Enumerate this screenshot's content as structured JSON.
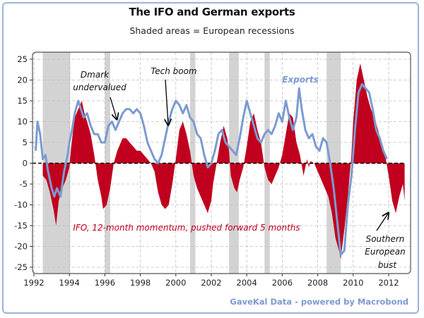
{
  "chart_data": {
    "type": "area",
    "title": "The IFO and German exports",
    "subtitle": "Shaded areas = European recessions",
    "source": "GaveKal Data - powered by Macrobond",
    "xlabel": "",
    "ylabel": "",
    "xlim": [
      1991.9,
      2013.2
    ],
    "ylim": [
      -27,
      27
    ],
    "grid": true,
    "x_ticks": [
      1992,
      1994,
      1996,
      1998,
      2000,
      2002,
      2004,
      2006,
      2008,
      2010,
      2012
    ],
    "x_tick_labels": [
      "1992",
      "1994",
      "1996",
      "1998",
      "2000",
      "2002",
      "2004",
      "2006",
      "2008",
      "2010",
      "2012"
    ],
    "y_ticks": [
      25,
      20,
      15,
      10,
      5,
      0,
      -5,
      -10,
      -15,
      -20,
      -25
    ],
    "y_tick_labels": [
      "25",
      "20",
      "15",
      "10",
      "5",
      "0",
      "-5",
      "-10",
      "-15",
      "-20",
      "-25"
    ],
    "recessions": [
      [
        1992.5,
        1994.05
      ],
      [
        1996.0,
        1996.3
      ],
      [
        2000.8,
        2001.1
      ],
      [
        2003.0,
        2003.55
      ],
      [
        2005.0,
        2005.3
      ],
      [
        2008.5,
        2009.3
      ]
    ],
    "series": [
      {
        "name": "IFO, 12-month momentum, pushed forward 5 months",
        "kind": "area",
        "color": "#c0001e",
        "x": [
          1992.5,
          1992.7,
          1992.9,
          1993.1,
          1993.25,
          1993.4,
          1993.6,
          1993.8,
          1994.0,
          1994.1,
          1994.3,
          1994.5,
          1994.7,
          1994.85,
          1995.0,
          1995.2,
          1995.4,
          1995.6,
          1995.8,
          1995.9,
          1996.1,
          1996.3,
          1996.5,
          1996.7,
          1996.9,
          1997.0,
          1997.2,
          1997.4,
          1997.6,
          1997.8,
          1998.0,
          1998.2,
          1998.4,
          1998.6,
          1998.8,
          1999.0,
          1999.2,
          1999.4,
          1999.6,
          1999.8,
          2000.0,
          2000.2,
          2000.4,
          2000.6,
          2000.8,
          2001.0,
          2001.2,
          2001.4,
          2001.6,
          2001.8,
          2002.0,
          2002.1,
          2002.3,
          2002.5,
          2002.7,
          2002.9,
          2003.0,
          2003.1,
          2003.3,
          2003.45,
          2003.6,
          2003.8,
          2004.0,
          2004.2,
          2004.4,
          2004.6,
          2004.8,
          2005.0,
          2005.2,
          2005.4,
          2005.6,
          2005.8,
          2006.0,
          2006.2,
          2006.4,
          2006.6,
          2006.8,
          2007.0,
          2007.2,
          2007.4,
          2007.5,
          2007.6,
          2007.8,
          2008.0,
          2008.2,
          2008.4,
          2008.6,
          2008.8,
          2009.0,
          2009.2,
          2009.3,
          2009.5,
          2009.7,
          2009.9,
          2010.0,
          2010.2,
          2010.4,
          2010.6,
          2010.8,
          2011.0,
          2011.2,
          2011.4,
          2011.6,
          2011.8,
          2012.0,
          2012.2,
          2012.4,
          2012.6,
          2012.8,
          2012.9
        ],
        "y": [
          -3,
          -4,
          -7,
          -11,
          -15,
          -9,
          -6,
          -4,
          -1,
          4,
          11,
          13,
          15,
          12,
          10,
          7,
          2,
          -4,
          -8,
          -11,
          -10,
          -6,
          0,
          3,
          5,
          6,
          6,
          5,
          4,
          3,
          3,
          2,
          1,
          0,
          -2,
          -7,
          -10,
          -11,
          -10,
          -5,
          1,
          8,
          10,
          7,
          3,
          -3,
          -6,
          -8,
          -10,
          -12,
          -9,
          -5,
          0,
          5,
          9,
          6,
          3,
          -3,
          -6,
          -7,
          -4,
          -1,
          4,
          10,
          12,
          8,
          5,
          -1,
          -4,
          -5,
          -3,
          -1,
          2,
          7,
          12,
          11,
          5,
          2,
          -3,
          1,
          -1,
          0.5,
          0,
          -2,
          -4,
          -6,
          -8,
          -12,
          -18,
          -21,
          -23,
          -16,
          -8,
          2,
          10,
          20,
          24,
          20,
          16,
          13,
          11,
          8,
          5,
          2,
          -3,
          -9,
          -12,
          -8,
          -5,
          -9
        ],
        "annotation": "IFO, 12-month momentum, pushed forward 5 months"
      },
      {
        "name": "Exports",
        "kind": "line",
        "color": "#7b9bd1",
        "x": [
          1992.1,
          1992.2,
          1992.35,
          1992.5,
          1992.65,
          1992.8,
          1993.0,
          1993.15,
          1993.3,
          1993.5,
          1993.7,
          1993.9,
          1994.0,
          1994.15,
          1994.3,
          1994.5,
          1994.65,
          1994.8,
          1995.0,
          1995.2,
          1995.4,
          1995.6,
          1995.8,
          1996.0,
          1996.2,
          1996.4,
          1996.6,
          1996.8,
          1997.0,
          1997.2,
          1997.4,
          1997.6,
          1997.8,
          1998.0,
          1998.2,
          1998.4,
          1998.6,
          1998.8,
          1999.0,
          1999.2,
          1999.4,
          1999.6,
          1999.8,
          2000.0,
          2000.2,
          2000.4,
          2000.6,
          2000.8,
          2001.0,
          2001.2,
          2001.4,
          2001.6,
          2001.8,
          2002.0,
          2002.2,
          2002.4,
          2002.6,
          2002.8,
          2003.0,
          2003.2,
          2003.4,
          2003.6,
          2003.8,
          2004.0,
          2004.2,
          2004.4,
          2004.6,
          2004.8,
          2005.0,
          2005.2,
          2005.4,
          2005.6,
          2005.8,
          2006.0,
          2006.2,
          2006.4,
          2006.6,
          2006.8,
          2006.95,
          2007.1,
          2007.3,
          2007.5,
          2007.7,
          2007.9,
          2008.1,
          2008.3,
          2008.5,
          2008.7,
          2008.9,
          2009.1,
          2009.3,
          2009.5,
          2009.7,
          2009.9,
          2010.1,
          2010.3,
          2010.5,
          2010.7,
          2010.9,
          2011.1,
          2011.3,
          2011.5,
          2011.7,
          2011.9
        ],
        "y": [
          3,
          10,
          7,
          1,
          2,
          -2,
          -6,
          -8,
          -6,
          -8,
          -2,
          2,
          5,
          8,
          12,
          15,
          13,
          11,
          12,
          9,
          7,
          7,
          5,
          5,
          9,
          10,
          8,
          10,
          12,
          13,
          13,
          12,
          13,
          12,
          9,
          5,
          3,
          1,
          0,
          2,
          6,
          10,
          13,
          15,
          14,
          12,
          14,
          11,
          10,
          7,
          6,
          2,
          -1,
          0,
          3,
          7,
          8,
          5,
          4,
          3,
          2,
          6,
          11,
          15,
          12,
          9,
          6,
          5,
          7,
          8,
          7,
          9,
          12,
          10,
          15,
          11,
          8,
          11,
          18,
          13,
          8,
          6,
          7,
          4,
          3,
          6,
          5,
          0,
          -6,
          -14,
          -22,
          -21,
          -10,
          -3,
          8,
          17,
          19,
          18,
          17,
          13,
          8,
          6,
          3,
          1
        ],
        "label": "Exports"
      }
    ],
    "annotations": [
      {
        "text": "Dmark undervalued",
        "lines": [
          "Dmark",
          "undervalued"
        ],
        "points_to": [
          1996.7,
          9
        ]
      },
      {
        "text": "Tech boom",
        "points_to": [
          1999.5,
          8
        ]
      },
      {
        "text": "Exports",
        "series": "Exports"
      },
      {
        "text": "IFO, 12-month momentum, pushed forward 5 months"
      },
      {
        "text": "Southern European bust",
        "lines": [
          "Southern",
          "European",
          "bust"
        ],
        "points_to": [
          2011.9,
          -12
        ]
      }
    ],
    "zero_line": "dashed"
  }
}
